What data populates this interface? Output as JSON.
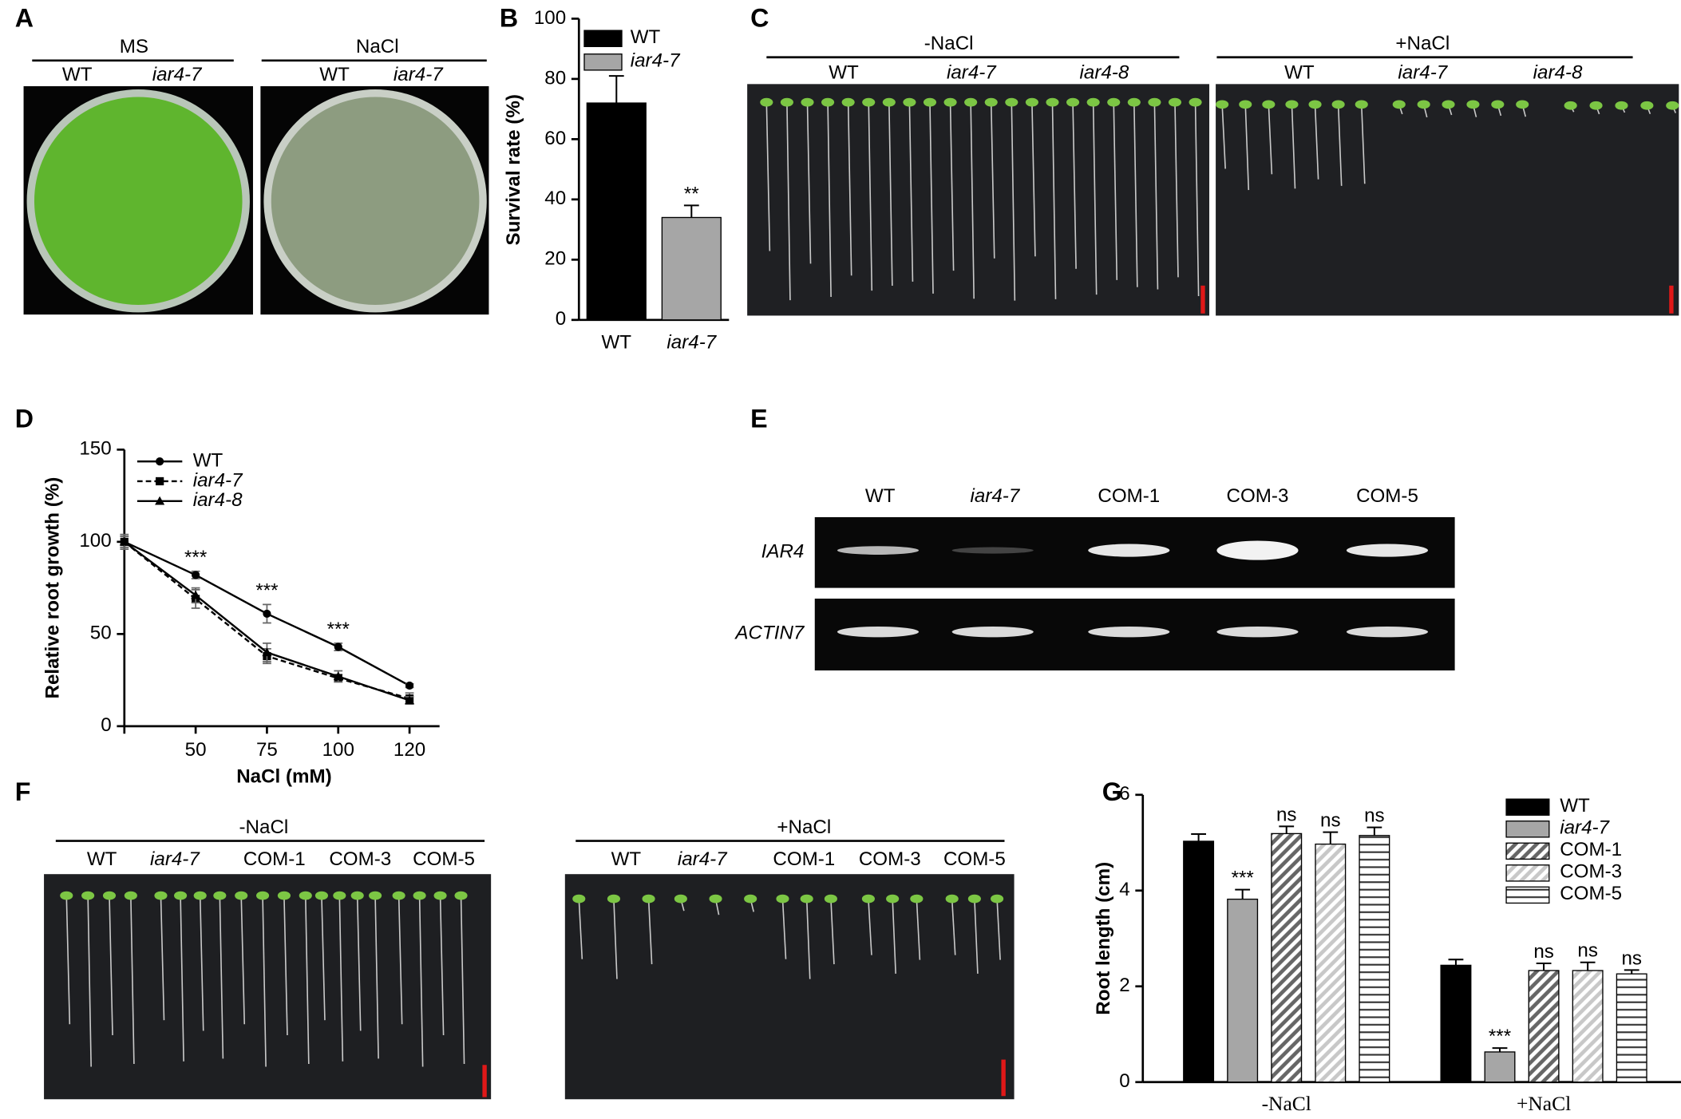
{
  "panel_letters": [
    "A",
    "B",
    "C",
    "D",
    "E",
    "F",
    "G"
  ],
  "panel_a": {
    "groups": [
      {
        "condition": "MS",
        "genotypes": [
          "WT",
          "iar4-7"
        ]
      },
      {
        "condition": "NaCl",
        "genotypes": [
          "WT",
          "iar4-7"
        ]
      }
    ]
  },
  "panel_c": {
    "groups": [
      {
        "condition": "-NaCl",
        "genotypes": [
          "WT",
          "iar4-7",
          "iar4-8"
        ]
      },
      {
        "condition": "+NaCl",
        "genotypes": [
          "WT",
          "iar4-7",
          "iar4-8"
        ]
      }
    ]
  },
  "panel_e": {
    "lanes": [
      "WT",
      "iar4-7",
      "COM-1",
      "COM-3",
      "COM-5"
    ],
    "genes": [
      "IAR4",
      "ACTIN7"
    ]
  },
  "panel_f": {
    "groups": [
      {
        "condition": "-NaCl",
        "genotypes": [
          "WT",
          "iar4-7",
          "COM-1",
          "COM-3",
          "COM-5"
        ]
      },
      {
        "condition": "+NaCl",
        "genotypes": [
          "WT",
          "iar4-7",
          "COM-1",
          "COM-3",
          "COM-5"
        ]
      }
    ]
  },
  "chart_data": [
    {
      "type": "bar",
      "y_label": "Survival rate (%)",
      "categories": [
        "WT",
        "iar4-7"
      ],
      "series": [
        {
          "name": "WT",
          "color": "#000000",
          "pattern": "solid",
          "italic": false,
          "values": [
            72,
            null
          ],
          "errors": [
            9,
            null
          ],
          "significance": [
            null,
            null
          ]
        },
        {
          "name": "iar4-7",
          "color": "#a6a6a6",
          "pattern": "solid",
          "italic": true,
          "values": [
            null,
            34
          ],
          "errors": [
            null,
            4
          ],
          "significance": [
            null,
            "**"
          ]
        }
      ],
      "ylim": [
        0,
        100
      ],
      "yticks": [
        0,
        20,
        40,
        60,
        80,
        100
      ],
      "legend": "top-left"
    },
    {
      "type": "line",
      "x_label": "NaCl (mM)",
      "y_label": "Relative root growth (%)",
      "categories": [
        null,
        "50",
        "75",
        "100",
        "120"
      ],
      "series": [
        {
          "name": "WT",
          "color": "#000000",
          "marker": "circle",
          "dash": "solid",
          "italic": false,
          "values": [
            100,
            82,
            61,
            43,
            22
          ],
          "errors": [
            3,
            2,
            5,
            2,
            1
          ],
          "significance": [
            null,
            "***",
            "***",
            "***",
            null
          ]
        },
        {
          "name": "iar4-7",
          "color": "#000000",
          "marker": "square",
          "dash": "dashed",
          "italic": true,
          "values": [
            100,
            69,
            38,
            26,
            15
          ],
          "errors": [
            4,
            5,
            4,
            2,
            3
          ],
          "significance": [
            null,
            null,
            null,
            null,
            null
          ]
        },
        {
          "name": "iar4-8",
          "color": "#000000",
          "marker": "triangle",
          "dash": "solid",
          "italic": true,
          "values": [
            100,
            71,
            40,
            27,
            14
          ],
          "errors": [
            3,
            4,
            5,
            3,
            2
          ],
          "significance": [
            null,
            null,
            null,
            null,
            null
          ]
        }
      ],
      "ylim": [
        0,
        150
      ],
      "yticks": [
        0,
        50,
        100,
        150
      ],
      "legend": "top-left"
    },
    {
      "type": "bar",
      "y_label": "Root length (cm)",
      "categories": [
        "-NaCl",
        "+NaCl"
      ],
      "series": [
        {
          "name": "WT",
          "color": "#000000",
          "pattern": "solid",
          "italic": false,
          "values": [
            5.03,
            2.44
          ],
          "errors": [
            0.15,
            0.12
          ],
          "significance": [
            null,
            null
          ]
        },
        {
          "name": "iar4-7",
          "color": "#a6a6a6",
          "pattern": "solid",
          "italic": true,
          "values": [
            3.82,
            0.63
          ],
          "errors": [
            0.2,
            0.08
          ],
          "significance": [
            "***",
            "***"
          ]
        },
        {
          "name": "COM-1",
          "color": "#666666",
          "pattern": "diagonal",
          "italic": false,
          "values": [
            5.19,
            2.33
          ],
          "errors": [
            0.15,
            0.15
          ],
          "significance": [
            "ns",
            "ns"
          ]
        },
        {
          "name": "COM-3",
          "color": "#c8c8c8",
          "pattern": "diagonal",
          "italic": false,
          "values": [
            4.97,
            2.33
          ],
          "errors": [
            0.25,
            0.17
          ],
          "significance": [
            "ns",
            "ns"
          ]
        },
        {
          "name": "COM-5",
          "color": "#333333",
          "pattern": "horizontal",
          "italic": false,
          "values": [
            5.15,
            2.26
          ],
          "errors": [
            0.17,
            0.08
          ],
          "significance": [
            "ns",
            "ns"
          ]
        }
      ],
      "ylim": [
        0,
        6
      ],
      "yticks": [
        0,
        2,
        4,
        6
      ],
      "legend": "top-right"
    }
  ]
}
